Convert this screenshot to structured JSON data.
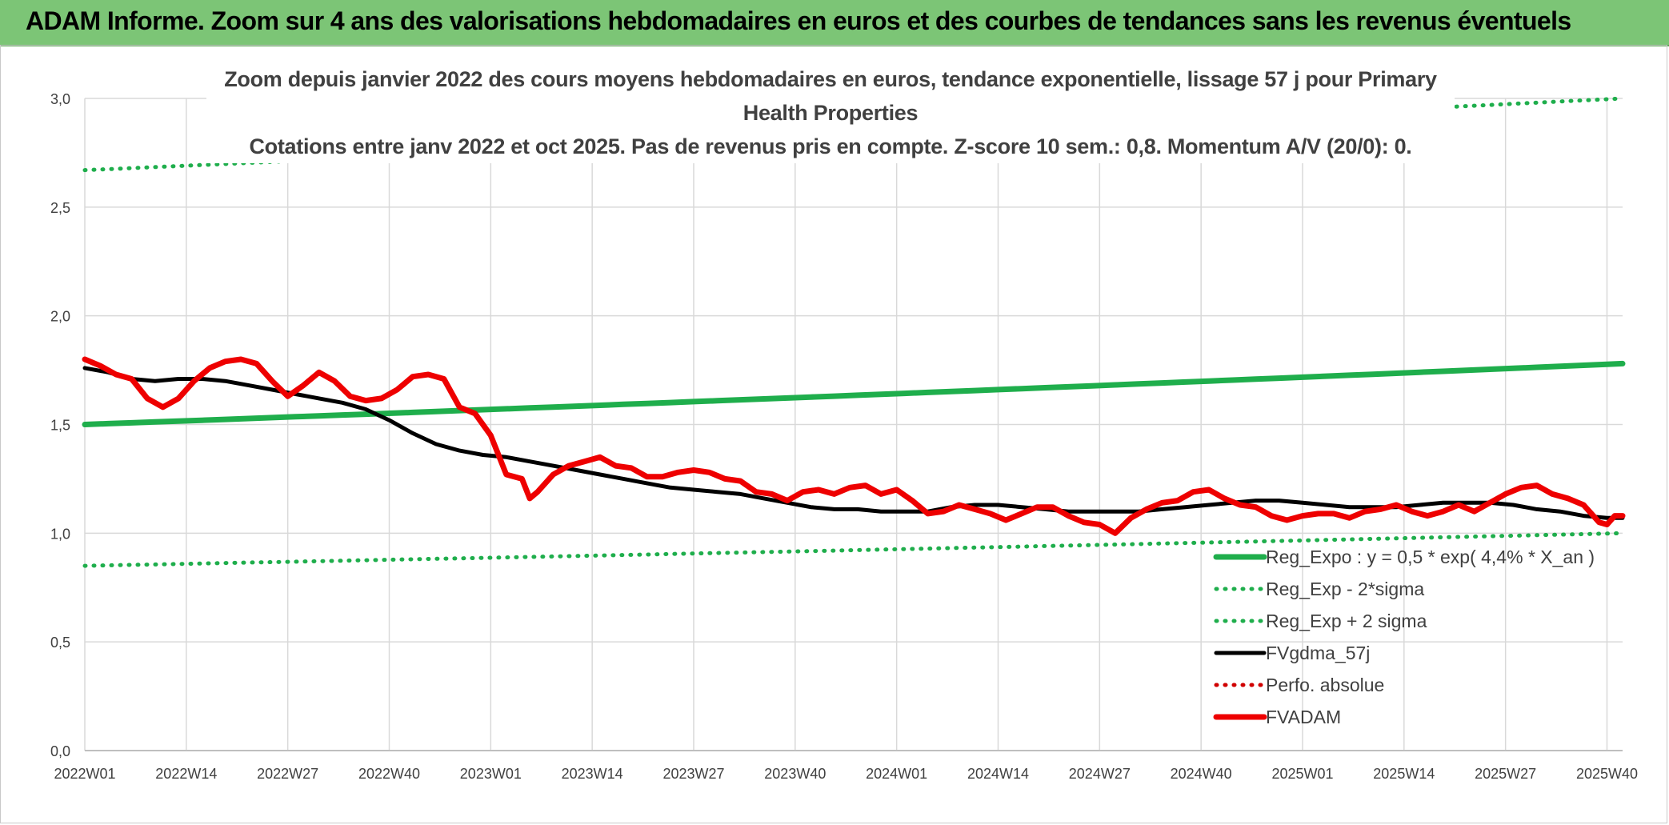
{
  "banner": {
    "title": "ADAM Informe. Zoom sur 4 ans des valorisations hebdomadaires en euros et des courbes de tendances sans les revenus éventuels"
  },
  "colors": {
    "banner_bg": "#7cc576",
    "reg_expo": "#1fae4c",
    "reg_sigma": "#1fae4c",
    "fvgdma": "#000000",
    "perfo": "#d00000",
    "fvadam": "#ee0000",
    "grid": "#d9d9d9"
  },
  "chart_data": {
    "type": "line",
    "title": "Zoom depuis janvier 2022 des cours moyens hebdomadaires en euros, tendance exponentielle, lissage 57 j pour Primary Health Properties",
    "subtitle": "Cotations entre janv 2022 et oct 2025. Pas de revenus pris en compte. Z-score 10 sem.: 0,8. Momentum A/V (20/0): 0.",
    "ylim": [
      0,
      3.0
    ],
    "grid": true,
    "legend_position": "bottom-right",
    "y_ticks": [
      "0,0",
      "0,5",
      "1,0",
      "1,5",
      "2,0",
      "2,5",
      "3,0"
    ],
    "x_ticks": [
      "2022W01",
      "2022W14",
      "2022W27",
      "2022W40",
      "2023W01",
      "2023W14",
      "2023W27",
      "2023W40",
      "2024W01",
      "2024W14",
      "2024W27",
      "2024W40",
      "2025W01",
      "2025W14",
      "2025W27",
      "2025W40"
    ],
    "n_weeks": 198,
    "series": [
      {
        "name": "Reg_Expo : y = 0,5 * exp( 4,4% *  X_an )",
        "style": "solid-thick",
        "color": "#1fae4c",
        "start": 1.5,
        "end": 1.78
      },
      {
        "name": "Reg_Exp - 2*sigma",
        "style": "dotted",
        "color": "#1fae4c",
        "start": 0.85,
        "end": 1.0
      },
      {
        "name": "Reg_Exp + 2 sigma",
        "style": "dotted",
        "color": "#1fae4c",
        "start": 2.67,
        "end": 3.0
      },
      {
        "name": "FVgdma_57j",
        "style": "solid",
        "color": "#000000",
        "points": [
          [
            0,
            1.76
          ],
          [
            3,
            1.74
          ],
          [
            6,
            1.71
          ],
          [
            9,
            1.7
          ],
          [
            12,
            1.71
          ],
          [
            15,
            1.71
          ],
          [
            18,
            1.7
          ],
          [
            21,
            1.68
          ],
          [
            24,
            1.66
          ],
          [
            27,
            1.64
          ],
          [
            30,
            1.62
          ],
          [
            33,
            1.6
          ],
          [
            36,
            1.57
          ],
          [
            39,
            1.52
          ],
          [
            42,
            1.46
          ],
          [
            45,
            1.41
          ],
          [
            48,
            1.38
          ],
          [
            51,
            1.36
          ],
          [
            54,
            1.35
          ],
          [
            57,
            1.33
          ],
          [
            60,
            1.31
          ],
          [
            63,
            1.29
          ],
          [
            66,
            1.27
          ],
          [
            69,
            1.25
          ],
          [
            72,
            1.23
          ],
          [
            75,
            1.21
          ],
          [
            78,
            1.2
          ],
          [
            81,
            1.19
          ],
          [
            84,
            1.18
          ],
          [
            87,
            1.16
          ],
          [
            90,
            1.14
          ],
          [
            93,
            1.12
          ],
          [
            96,
            1.11
          ],
          [
            99,
            1.11
          ],
          [
            102,
            1.1
          ],
          [
            105,
            1.1
          ],
          [
            108,
            1.1
          ],
          [
            111,
            1.12
          ],
          [
            114,
            1.13
          ],
          [
            117,
            1.13
          ],
          [
            120,
            1.12
          ],
          [
            123,
            1.11
          ],
          [
            126,
            1.1
          ],
          [
            129,
            1.1
          ],
          [
            132,
            1.1
          ],
          [
            135,
            1.1
          ],
          [
            138,
            1.11
          ],
          [
            141,
            1.12
          ],
          [
            144,
            1.13
          ],
          [
            147,
            1.14
          ],
          [
            150,
            1.15
          ],
          [
            153,
            1.15
          ],
          [
            156,
            1.14
          ],
          [
            159,
            1.13
          ],
          [
            162,
            1.12
          ],
          [
            165,
            1.12
          ],
          [
            168,
            1.12
          ],
          [
            171,
            1.13
          ],
          [
            174,
            1.14
          ],
          [
            177,
            1.14
          ],
          [
            180,
            1.14
          ],
          [
            183,
            1.13
          ],
          [
            186,
            1.11
          ],
          [
            189,
            1.1
          ],
          [
            192,
            1.08
          ],
          [
            195,
            1.07
          ],
          [
            197,
            1.07
          ]
        ]
      },
      {
        "name": "Perfo. absolue",
        "style": "dotted",
        "color": "#d00000",
        "points": []
      },
      {
        "name": "FVADAM",
        "style": "solid-thick",
        "color": "#ee0000",
        "points": [
          [
            0,
            1.8
          ],
          [
            2,
            1.77
          ],
          [
            4,
            1.73
          ],
          [
            6,
            1.71
          ],
          [
            8,
            1.62
          ],
          [
            10,
            1.58
          ],
          [
            12,
            1.62
          ],
          [
            14,
            1.7
          ],
          [
            16,
            1.76
          ],
          [
            18,
            1.79
          ],
          [
            20,
            1.8
          ],
          [
            22,
            1.78
          ],
          [
            24,
            1.7
          ],
          [
            26,
            1.63
          ],
          [
            28,
            1.68
          ],
          [
            30,
            1.74
          ],
          [
            32,
            1.7
          ],
          [
            34,
            1.63
          ],
          [
            36,
            1.61
          ],
          [
            38,
            1.62
          ],
          [
            40,
            1.66
          ],
          [
            42,
            1.72
          ],
          [
            44,
            1.73
          ],
          [
            46,
            1.71
          ],
          [
            48,
            1.58
          ],
          [
            50,
            1.55
          ],
          [
            52,
            1.45
          ],
          [
            54,
            1.27
          ],
          [
            56,
            1.25
          ],
          [
            57,
            1.16
          ],
          [
            58,
            1.19
          ],
          [
            60,
            1.27
          ],
          [
            62,
            1.31
          ],
          [
            64,
            1.33
          ],
          [
            66,
            1.35
          ],
          [
            68,
            1.31
          ],
          [
            70,
            1.3
          ],
          [
            72,
            1.26
          ],
          [
            74,
            1.26
          ],
          [
            76,
            1.28
          ],
          [
            78,
            1.29
          ],
          [
            80,
            1.28
          ],
          [
            82,
            1.25
          ],
          [
            84,
            1.24
          ],
          [
            86,
            1.19
          ],
          [
            88,
            1.18
          ],
          [
            90,
            1.15
          ],
          [
            92,
            1.19
          ],
          [
            94,
            1.2
          ],
          [
            96,
            1.18
          ],
          [
            98,
            1.21
          ],
          [
            100,
            1.22
          ],
          [
            102,
            1.18
          ],
          [
            104,
            1.2
          ],
          [
            106,
            1.15
          ],
          [
            108,
            1.09
          ],
          [
            110,
            1.1
          ],
          [
            112,
            1.13
          ],
          [
            114,
            1.11
          ],
          [
            116,
            1.09
          ],
          [
            118,
            1.06
          ],
          [
            120,
            1.09
          ],
          [
            122,
            1.12
          ],
          [
            124,
            1.12
          ],
          [
            126,
            1.08
          ],
          [
            128,
            1.05
          ],
          [
            130,
            1.04
          ],
          [
            132,
            1.0
          ],
          [
            134,
            1.07
          ],
          [
            136,
            1.11
          ],
          [
            138,
            1.14
          ],
          [
            140,
            1.15
          ],
          [
            142,
            1.19
          ],
          [
            144,
            1.2
          ],
          [
            146,
            1.16
          ],
          [
            148,
            1.13
          ],
          [
            150,
            1.12
          ],
          [
            152,
            1.08
          ],
          [
            154,
            1.06
          ],
          [
            156,
            1.08
          ],
          [
            158,
            1.09
          ],
          [
            160,
            1.09
          ],
          [
            162,
            1.07
          ],
          [
            164,
            1.1
          ],
          [
            166,
            1.11
          ],
          [
            168,
            1.13
          ],
          [
            170,
            1.1
          ],
          [
            172,
            1.08
          ],
          [
            174,
            1.1
          ],
          [
            176,
            1.13
          ],
          [
            178,
            1.1
          ],
          [
            180,
            1.14
          ],
          [
            182,
            1.18
          ],
          [
            184,
            1.21
          ],
          [
            186,
            1.22
          ],
          [
            188,
            1.18
          ],
          [
            190,
            1.16
          ],
          [
            192,
            1.13
          ],
          [
            193,
            1.09
          ],
          [
            194,
            1.05
          ],
          [
            195,
            1.04
          ],
          [
            196,
            1.08
          ],
          [
            197,
            1.08
          ]
        ]
      }
    ]
  }
}
